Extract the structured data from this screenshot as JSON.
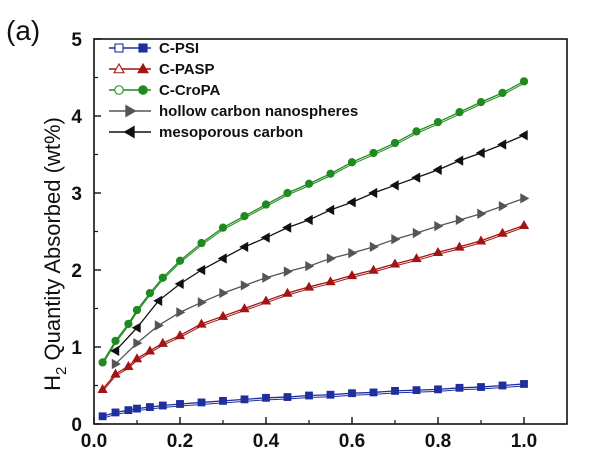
{
  "chart_data": {
    "type": "line",
    "panel_label": "(a)",
    "title": "",
    "xlabel": "",
    "ylabel": "H2 Quantity Absorbed (wt%)",
    "ylabel_main": "H",
    "ylabel_sub": "2",
    "ylabel_rest": " Quantity Absorbed (wt%)",
    "xlim": [
      0.0,
      1.1
    ],
    "ylim": [
      0,
      5
    ],
    "x_ticks": [
      0.0,
      0.2,
      0.4,
      0.6,
      0.8,
      1.0
    ],
    "x_tick_labels": [
      "0.0",
      "0.2",
      "0.4",
      "0.6",
      "0.8",
      "1.0"
    ],
    "y_ticks": [
      0,
      1,
      2,
      3,
      4,
      5
    ],
    "y_tick_labels": [
      "0",
      "1",
      "2",
      "3",
      "4",
      "5"
    ],
    "grid": false,
    "legend_position": "top-left",
    "series": [
      {
        "name": "C-PSI",
        "color": "#1f2f9e",
        "marker": "square",
        "x": [
          0.02,
          0.05,
          0.08,
          0.1,
          0.13,
          0.16,
          0.2,
          0.25,
          0.3,
          0.35,
          0.4,
          0.45,
          0.5,
          0.55,
          0.6,
          0.65,
          0.7,
          0.75,
          0.8,
          0.85,
          0.9,
          0.95,
          1.0
        ],
        "y": [
          0.1,
          0.15,
          0.18,
          0.2,
          0.22,
          0.24,
          0.26,
          0.28,
          0.3,
          0.32,
          0.34,
          0.35,
          0.37,
          0.38,
          0.4,
          0.41,
          0.43,
          0.44,
          0.45,
          0.47,
          0.48,
          0.5,
          0.52
        ]
      },
      {
        "name": "C-PASP",
        "color": "#a31414",
        "marker": "triangle-up",
        "x": [
          0.02,
          0.05,
          0.08,
          0.1,
          0.13,
          0.16,
          0.2,
          0.25,
          0.3,
          0.35,
          0.4,
          0.45,
          0.5,
          0.55,
          0.6,
          0.65,
          0.7,
          0.75,
          0.8,
          0.85,
          0.9,
          0.95,
          1.0
        ],
        "y": [
          0.45,
          0.65,
          0.75,
          0.85,
          0.95,
          1.05,
          1.15,
          1.3,
          1.4,
          1.5,
          1.6,
          1.7,
          1.78,
          1.85,
          1.93,
          2.0,
          2.08,
          2.15,
          2.23,
          2.3,
          2.38,
          2.48,
          2.58
        ]
      },
      {
        "name": "C-CroPA",
        "color": "#1f8a1f",
        "marker": "circle",
        "x": [
          0.02,
          0.05,
          0.08,
          0.1,
          0.13,
          0.16,
          0.2,
          0.25,
          0.3,
          0.35,
          0.4,
          0.45,
          0.5,
          0.55,
          0.6,
          0.65,
          0.7,
          0.75,
          0.8,
          0.85,
          0.9,
          0.95,
          1.0
        ],
        "y": [
          0.8,
          1.08,
          1.3,
          1.48,
          1.7,
          1.9,
          2.12,
          2.35,
          2.55,
          2.7,
          2.85,
          3.0,
          3.12,
          3.25,
          3.4,
          3.52,
          3.65,
          3.8,
          3.92,
          4.05,
          4.18,
          4.3,
          4.45
        ]
      },
      {
        "name": "hollow carbon nanospheres",
        "color": "#555555",
        "marker": "triangle-right",
        "x": [
          0.05,
          0.1,
          0.15,
          0.2,
          0.25,
          0.3,
          0.35,
          0.4,
          0.45,
          0.5,
          0.55,
          0.6,
          0.65,
          0.7,
          0.75,
          0.8,
          0.85,
          0.9,
          0.95,
          1.0
        ],
        "y": [
          0.78,
          1.05,
          1.28,
          1.45,
          1.58,
          1.7,
          1.8,
          1.9,
          1.98,
          2.05,
          2.15,
          2.22,
          2.3,
          2.4,
          2.48,
          2.57,
          2.65,
          2.73,
          2.83,
          2.93
        ]
      },
      {
        "name": "mesoporous carbon",
        "color": "#111111",
        "marker": "triangle-left",
        "x": [
          0.05,
          0.1,
          0.15,
          0.2,
          0.25,
          0.3,
          0.35,
          0.4,
          0.45,
          0.5,
          0.55,
          0.6,
          0.65,
          0.7,
          0.75,
          0.8,
          0.85,
          0.9,
          0.95,
          1.0
        ],
        "y": [
          0.95,
          1.25,
          1.6,
          1.82,
          2.0,
          2.15,
          2.3,
          2.42,
          2.55,
          2.65,
          2.78,
          2.88,
          3.0,
          3.1,
          3.2,
          3.3,
          3.42,
          3.52,
          3.63,
          3.75
        ]
      }
    ]
  }
}
